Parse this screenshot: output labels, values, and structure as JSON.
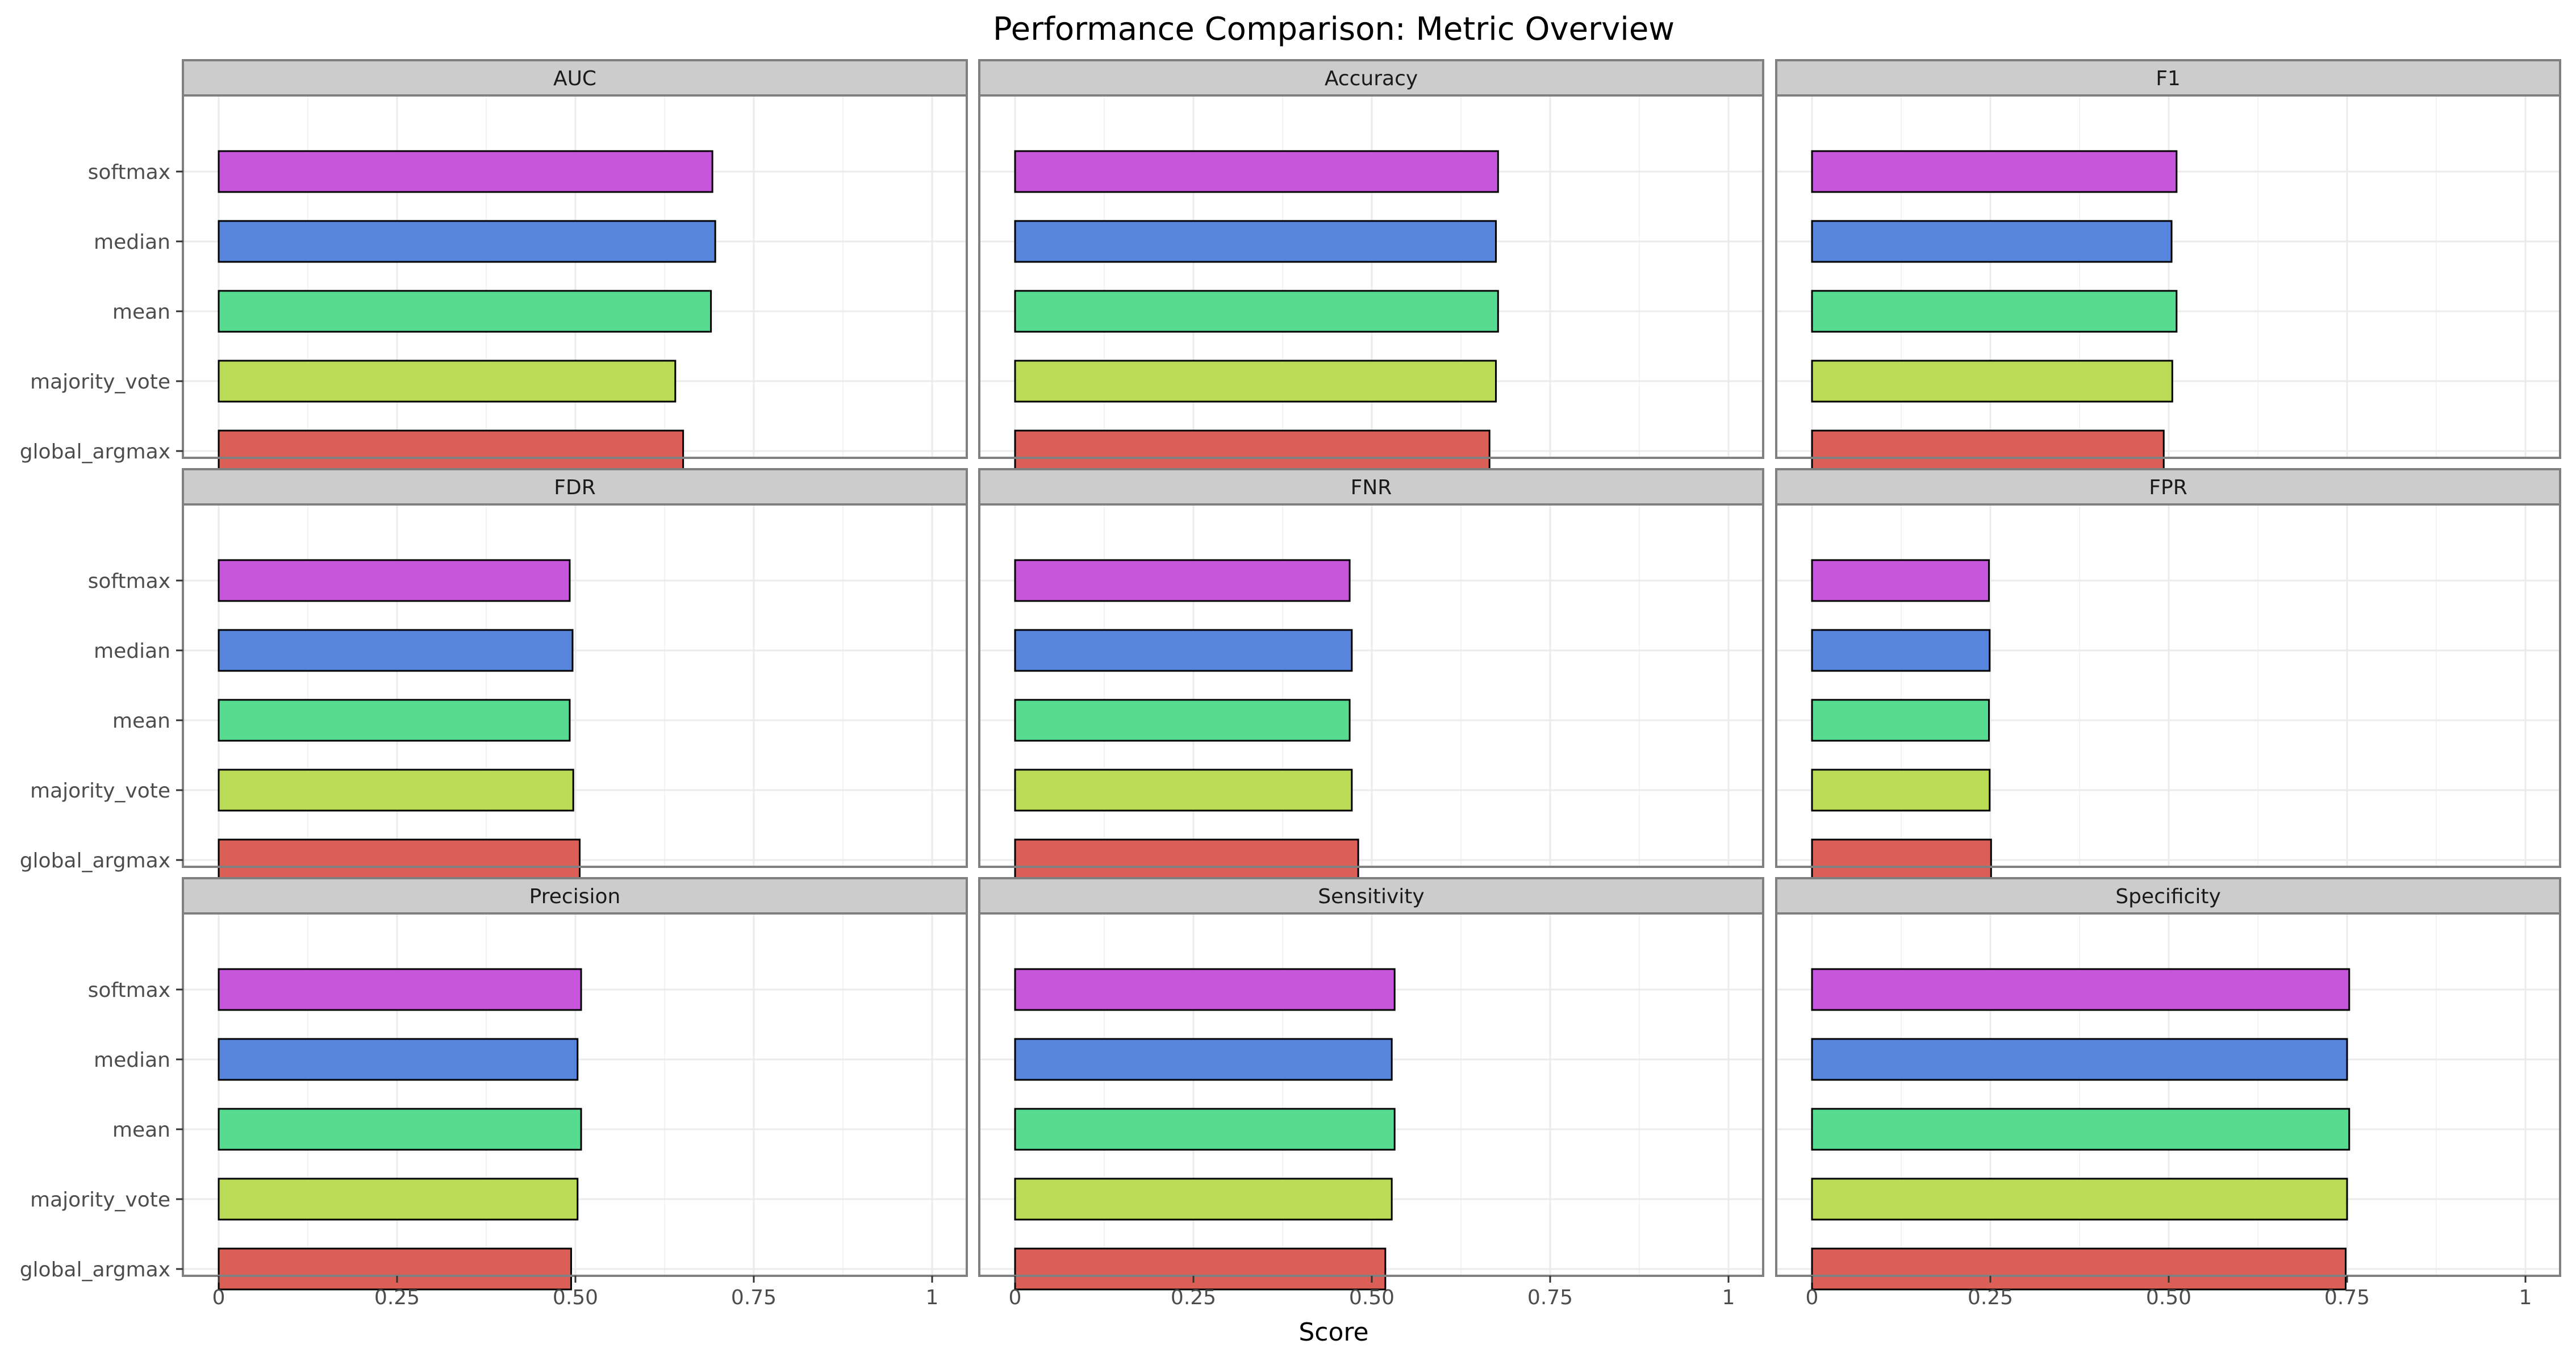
{
  "chart_data": {
    "type": "bar",
    "orientation": "horizontal",
    "title": "Performance Comparison: Metric Overview",
    "xlabel": "Score",
    "ylabel": "",
    "xlim": [
      0,
      1
    ],
    "x_ticks": [
      0,
      0.25,
      0.5,
      0.75,
      1
    ],
    "x_tick_labels": [
      "0",
      "0.25",
      "0.50",
      "0.75",
      "1"
    ],
    "grid": true,
    "legend": "none",
    "categories": [
      "softmax",
      "median",
      "mean",
      "majority_vote",
      "global_argmax"
    ],
    "category_colors": {
      "softmax": "#c656db",
      "median": "#5685db",
      "mean": "#56db90",
      "majority_vote": "#badb56",
      "global_argmax": "#db5f56"
    },
    "bar_outline_color": "#000000",
    "strip_background": "#cccccc",
    "panel_border": "#808080",
    "panels": [
      {
        "metric": "AUC",
        "values": {
          "softmax": 0.692,
          "median": 0.696,
          "mean": 0.69,
          "majority_vote": 0.64,
          "global_argmax": 0.651
        }
      },
      {
        "metric": "Accuracy",
        "values": {
          "softmax": 0.677,
          "median": 0.674,
          "mean": 0.677,
          "majority_vote": 0.674,
          "global_argmax": 0.665
        }
      },
      {
        "metric": "F1",
        "values": {
          "softmax": 0.511,
          "median": 0.504,
          "mean": 0.511,
          "majority_vote": 0.505,
          "global_argmax": 0.493
        }
      },
      {
        "metric": "FDR",
        "values": {
          "softmax": 0.492,
          "median": 0.496,
          "mean": 0.492,
          "majority_vote": 0.497,
          "global_argmax": 0.506
        }
      },
      {
        "metric": "FNR",
        "values": {
          "softmax": 0.469,
          "median": 0.472,
          "mean": 0.469,
          "majority_vote": 0.472,
          "global_argmax": 0.481
        }
      },
      {
        "metric": "FPR",
        "values": {
          "softmax": 0.248,
          "median": 0.249,
          "mean": 0.248,
          "majority_vote": 0.249,
          "global_argmax": 0.251
        }
      },
      {
        "metric": "Precision",
        "values": {
          "softmax": 0.508,
          "median": 0.503,
          "mean": 0.508,
          "majority_vote": 0.503,
          "global_argmax": 0.494
        }
      },
      {
        "metric": "Sensitivity",
        "values": {
          "softmax": 0.532,
          "median": 0.528,
          "mean": 0.532,
          "majority_vote": 0.528,
          "global_argmax": 0.519
        }
      },
      {
        "metric": "Specificity",
        "values": {
          "softmax": 0.753,
          "median": 0.75,
          "mean": 0.753,
          "majority_vote": 0.75,
          "global_argmax": 0.748
        }
      }
    ]
  }
}
